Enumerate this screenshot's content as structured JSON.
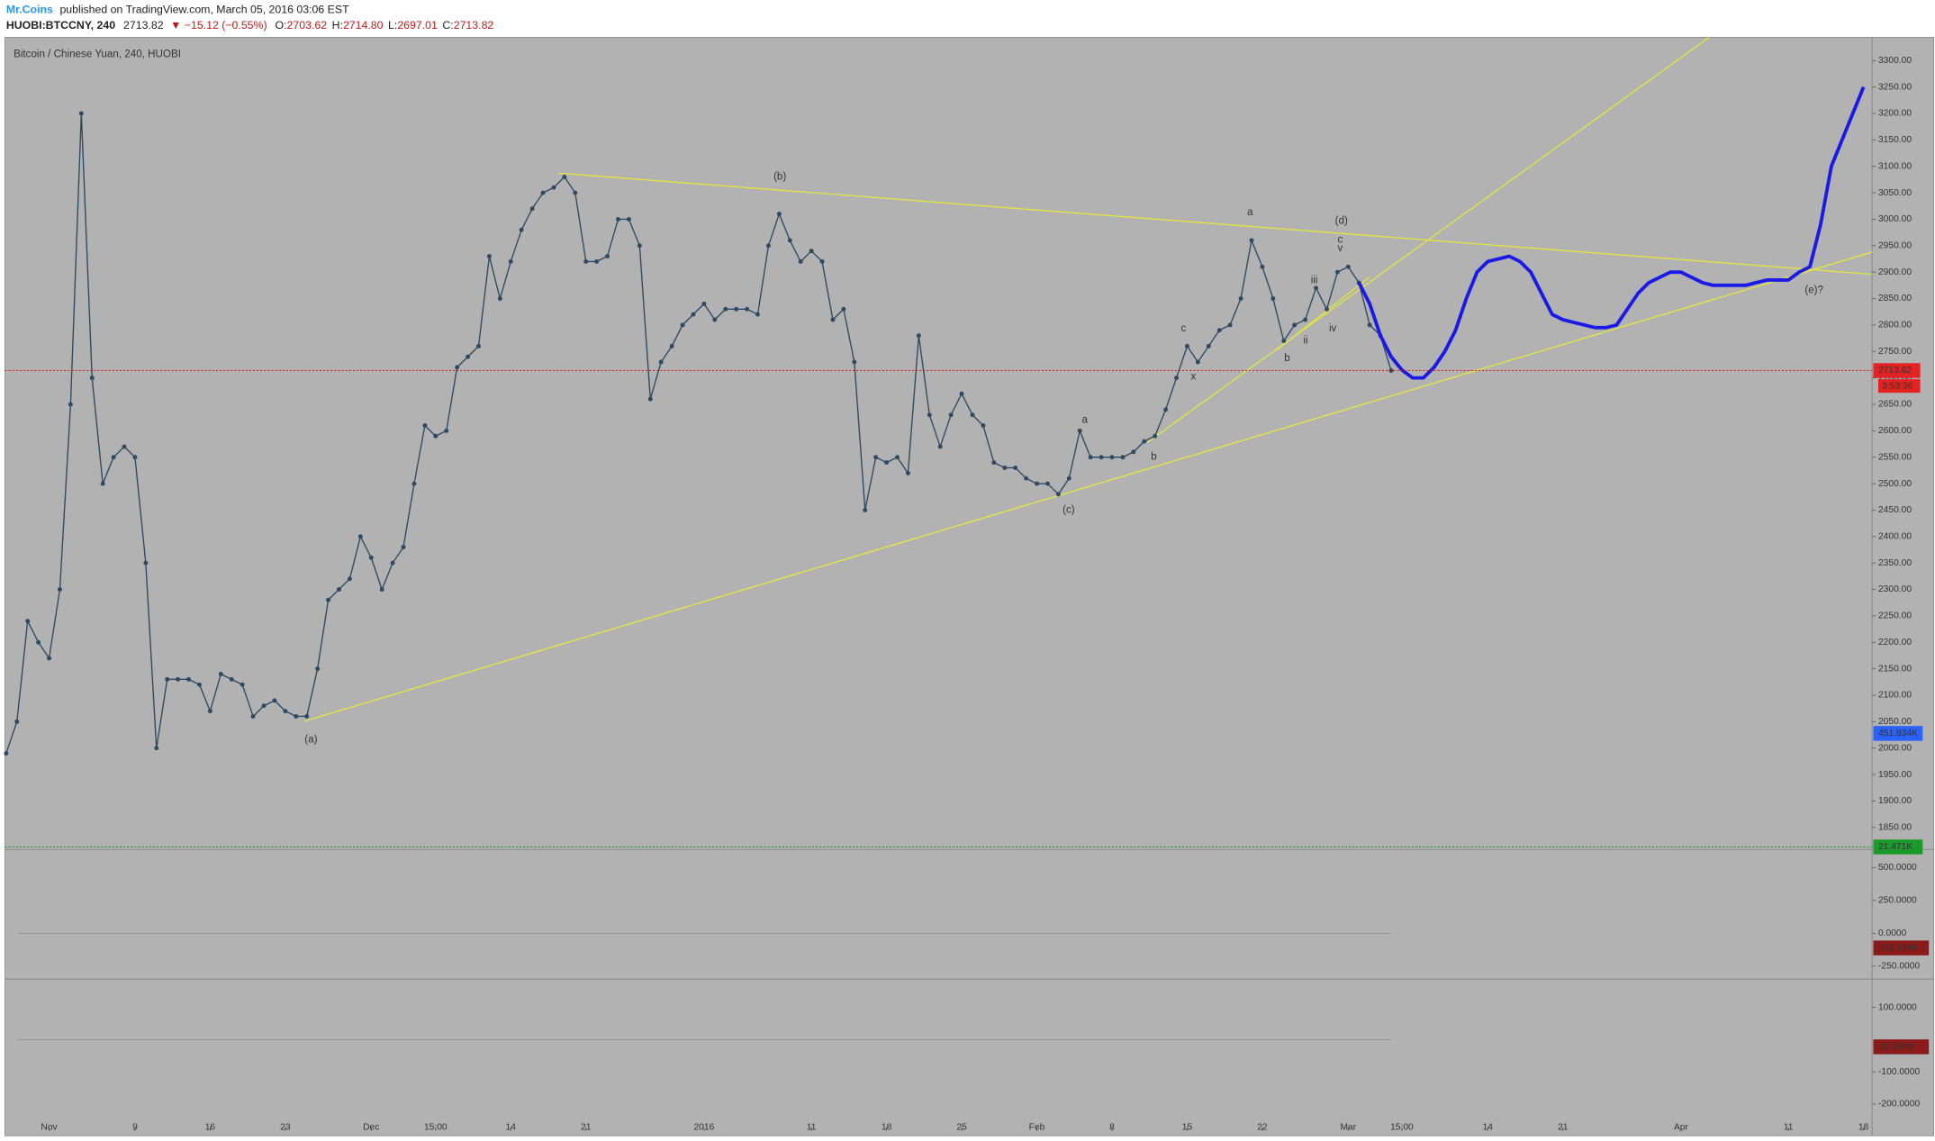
{
  "header": {
    "author": "Mr.Coins",
    "published": "published on TradingView.com, March 05, 2016 03:06 EST",
    "symbol": "HUOBI:BTCCNY, 240",
    "change": "▼ −15.12 (−0.55%)",
    "ohlc": [
      {
        "label": "O:",
        "value": "2703.62"
      },
      {
        "label": "H:",
        "value": "2714.80"
      },
      {
        "label": "L:",
        "value": "2697.01"
      },
      {
        "label": "C:",
        "value": "2713.82"
      }
    ]
  },
  "chart_data": {
    "type": "line",
    "title": "Bitcoin / Chinese Yuan, 240, HUOBI",
    "grid": false,
    "categories": [
      null,
      null,
      null,
      null,
      "Nov",
      null,
      null,
      null,
      null,
      null,
      null,
      null,
      "9",
      null,
      null,
      null,
      null,
      null,
      null,
      "16",
      null,
      null,
      null,
      null,
      null,
      null,
      "23",
      null,
      null,
      null,
      null,
      null,
      null,
      null,
      "Dec",
      null,
      null,
      null,
      null,
      null,
      "15:00",
      null,
      null,
      null,
      null,
      null,
      null,
      "14",
      null,
      null,
      null,
      null,
      null,
      null,
      "21",
      null,
      null,
      null,
      null,
      null,
      null,
      null,
      null,
      null,
      null,
      "2016",
      null,
      null,
      null,
      null,
      null,
      null,
      null,
      null,
      null,
      "11",
      null,
      null,
      null,
      null,
      null,
      null,
      "18",
      null,
      null,
      null,
      null,
      null,
      null,
      "25",
      null,
      null,
      null,
      null,
      null,
      null,
      "Feb",
      null,
      null,
      null,
      null,
      null,
      null,
      "8",
      null,
      null,
      null,
      null,
      null,
      null,
      "15",
      null,
      null,
      null,
      null,
      null,
      null,
      "22",
      null,
      null,
      null,
      null,
      null,
      null,
      null,
      "Mar",
      null,
      null,
      null,
      null,
      "15:00",
      null,
      null,
      null,
      null,
      null,
      null,
      null,
      "14",
      null,
      null,
      null,
      null,
      null,
      null,
      "21",
      null,
      null,
      null,
      null,
      null,
      null,
      null,
      null,
      null,
      null,
      "Apr",
      null,
      null,
      null,
      null,
      null,
      null,
      null,
      null,
      null,
      "11",
      null,
      null,
      null,
      null,
      null,
      null,
      "18"
    ],
    "series": [
      {
        "color": "#2e4a62",
        "markers": true,
        "values": [
          1990,
          2050,
          2240,
          2200,
          2170,
          2300,
          2650,
          3200,
          2700,
          2500,
          2550,
          2570,
          2550,
          2350,
          2000,
          2130,
          2130,
          2130,
          2120,
          2070,
          2140,
          2130,
          2120,
          2060,
          2080,
          2090,
          2070,
          2060,
          2060,
          2150,
          2280,
          2300,
          2320,
          2400,
          2360,
          2300,
          2350,
          2380,
          2500,
          2610,
          2590,
          2600,
          2720,
          2740,
          2760,
          2930,
          2850,
          2920,
          2980,
          3020,
          3050,
          3060,
          3080,
          3050,
          2920,
          2920,
          2930,
          3000,
          3000,
          2950,
          2660,
          2730,
          2760,
          2800,
          2820,
          2840,
          2810,
          2830,
          2830,
          2830,
          2820,
          2950,
          3010,
          2960,
          2920,
          2940,
          2920,
          2810,
          2830,
          2730,
          2450,
          2550,
          2540,
          2550,
          2520,
          2780,
          2630,
          2570,
          2630,
          2670,
          2630,
          2610,
          2540,
          2530,
          2530,
          2510,
          2500,
          2500,
          2480,
          2510,
          2600,
          2550,
          2550,
          2550,
          2550,
          2560,
          2580,
          2590,
          2640,
          2700,
          2760,
          2730,
          2760,
          2790,
          2800,
          2850,
          2960,
          2910,
          2850,
          2770,
          2800,
          2810,
          2870,
          2830,
          2900,
          2910,
          2880,
          2800,
          2780,
          2713.82,
          null,
          null,
          null,
          null,
          null,
          null,
          null,
          null,
          null,
          null,
          null,
          null,
          null,
          null,
          null,
          null,
          null,
          null,
          null,
          null,
          null,
          null,
          null,
          null,
          null,
          null,
          null,
          null,
          null,
          null,
          null,
          null,
          null,
          null,
          null,
          null,
          null,
          null,
          null,
          null,
          null,
          null,
          null,
          null
        ]
      },
      {
        "color": "#1a1ae6",
        "markers": false,
        "values": [
          null,
          null,
          null,
          null,
          null,
          null,
          null,
          null,
          null,
          null,
          null,
          null,
          null,
          null,
          null,
          null,
          null,
          null,
          null,
          null,
          null,
          null,
          null,
          null,
          null,
          null,
          null,
          null,
          null,
          null,
          null,
          null,
          null,
          null,
          null,
          null,
          null,
          null,
          null,
          null,
          null,
          null,
          null,
          null,
          null,
          null,
          null,
          null,
          null,
          null,
          null,
          null,
          null,
          null,
          null,
          null,
          null,
          null,
          null,
          null,
          null,
          null,
          null,
          null,
          null,
          null,
          null,
          null,
          null,
          null,
          null,
          null,
          null,
          null,
          null,
          null,
          null,
          null,
          null,
          null,
          null,
          null,
          null,
          null,
          null,
          null,
          null,
          null,
          null,
          null,
          null,
          null,
          null,
          null,
          null,
          null,
          null,
          null,
          null,
          null,
          null,
          null,
          null,
          null,
          null,
          null,
          null,
          null,
          null,
          null,
          null,
          null,
          null,
          null,
          null,
          null,
          null,
          null,
          null,
          null,
          null,
          null,
          null,
          null,
          null,
          null,
          2880,
          2840,
          2780,
          2740,
          2715,
          2700,
          2700,
          2720,
          2750,
          2790,
          2850,
          2900,
          2920,
          2925,
          2930,
          2920,
          2900,
          2860,
          2820,
          2810,
          2805,
          2800,
          2795,
          2795,
          2800,
          2830,
          2860,
          2880,
          2890,
          2900,
          2900,
          2890,
          2880,
          2875,
          2875,
          2875,
          2875,
          2880,
          2885,
          2885,
          2885,
          2900,
          2910,
          2990,
          3100,
          3150,
          3200,
          3250
        ]
      }
    ],
    "ylim": [
      1813,
      3344
    ],
    "yticks": [
      {
        "value": 1850,
        "label": "1850.00"
      },
      {
        "value": 1900,
        "label": "1900.00"
      },
      {
        "value": 1950,
        "label": "1950.00"
      },
      {
        "value": 2000,
        "label": "2000.00"
      },
      {
        "value": 2050,
        "label": "2050.00"
      },
      {
        "value": 2100,
        "label": "2100.00"
      },
      {
        "value": 2150,
        "label": "2150.00"
      },
      {
        "value": 2200,
        "label": "2200.00"
      },
      {
        "value": 2250,
        "label": "2250.00"
      },
      {
        "value": 2300,
        "label": "2300.00"
      },
      {
        "value": 2350,
        "label": "2350.00"
      },
      {
        "value": 2400,
        "label": "2400.00"
      },
      {
        "value": 2450,
        "label": "2450.00"
      },
      {
        "value": 2500,
        "label": "2500.00"
      },
      {
        "value": 2550,
        "label": "2550.00"
      },
      {
        "value": 2600,
        "label": "2600.00"
      },
      {
        "value": 2650,
        "label": "2650.00"
      },
      {
        "value": 2700,
        "label": "2700.00"
      },
      {
        "value": 2750,
        "label": "2750.00"
      },
      {
        "value": 2800,
        "label": "2800.00"
      },
      {
        "value": 2850,
        "label": "2850.00"
      },
      {
        "value": 2900,
        "label": "2900.00"
      },
      {
        "value": 2950,
        "label": "2950.00"
      },
      {
        "value": 3000,
        "label": "3000.00"
      },
      {
        "value": 3050,
        "label": "3050.00"
      },
      {
        "value": 3100,
        "label": "3100.00"
      },
      {
        "value": 3150,
        "label": "3150.00"
      },
      {
        "value": 3200,
        "label": "3200.00"
      },
      {
        "value": 3250,
        "label": "3250.00"
      },
      {
        "value": 3300,
        "label": "3300.00"
      }
    ],
    "countdown": "3:53:36",
    "volume_tags": [
      "451.934K",
      "21.471K"
    ],
    "annotations": [
      "(a)",
      "(b)",
      "(c)",
      "(d)",
      "(e)?",
      "a",
      "b",
      "c",
      "x",
      "a",
      "b",
      "c",
      "ii",
      "iii",
      "iv",
      "v"
    ],
    "panels": [
      {
        "ylim": [
          -320,
          620
        ],
        "yticks": [
          {
            "value": 500,
            "label": "500.0000"
          },
          {
            "value": 250,
            "label": "250.0000"
          },
          {
            "value": 0,
            "label": "0.0000"
          },
          {
            "value": -250,
            "label": "-250.0000"
          }
        ],
        "last": {
          "value": -111.419,
          "label": "-111.4190"
        }
      },
      {
        "ylim": [
          -260,
          180
        ],
        "yticks": [
          {
            "value": 100,
            "label": "100.0000"
          },
          {
            "value": -100,
            "label": "-100.0000"
          },
          {
            "value": -200,
            "label": "-200.0000"
          }
        ],
        "last": {
          "value": -22.5049,
          "label": "-22.5049"
        }
      }
    ]
  }
}
